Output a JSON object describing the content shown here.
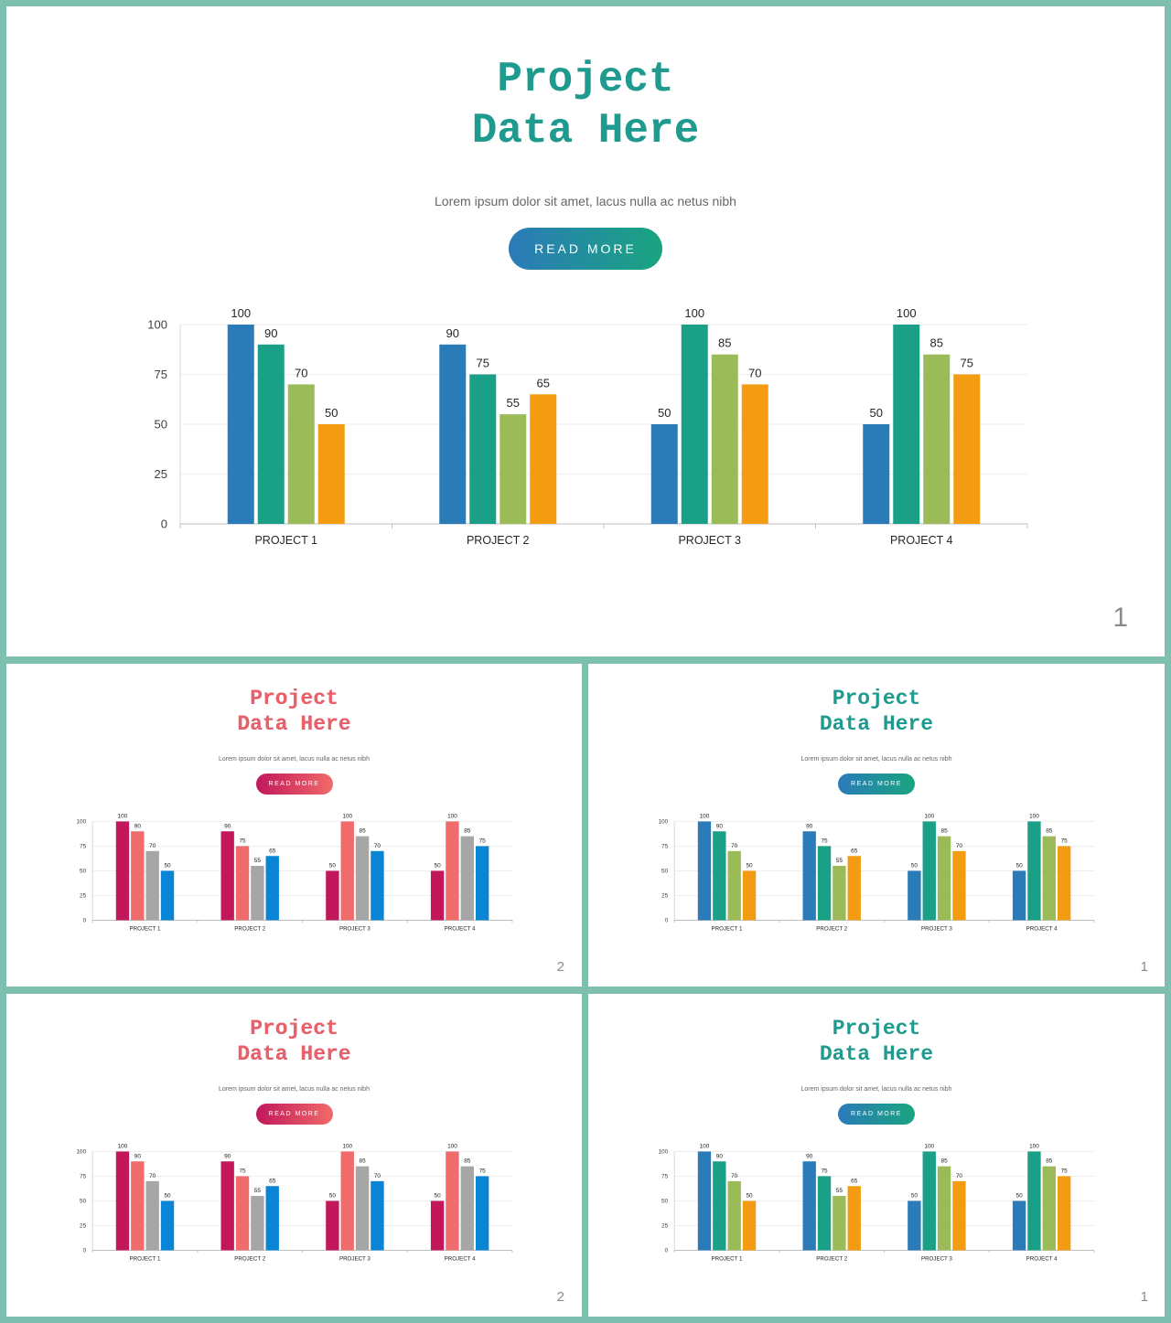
{
  "slides": [
    {
      "id": "slide-large",
      "title": "Project\nData Here",
      "subtitle": "Lorem ipsum dolor sit amet, lacus nulla ac netus nibh",
      "button_label": "READ MORE",
      "page_number": "1",
      "theme": "teal",
      "chart_index": 0
    },
    {
      "id": "slide-small-1",
      "title": "Project\nData Here",
      "subtitle": "Lorem ipsum dolor sit amet, lacus nulla ac netus nibh",
      "button_label": "READ MORE",
      "page_number": "2",
      "theme": "pink",
      "chart_index": 1
    },
    {
      "id": "slide-small-2",
      "title": "Project\nData Here",
      "subtitle": "Lorem ipsum dolor sit amet, lacus nulla ac netus nibh",
      "button_label": "READ MORE",
      "page_number": "1",
      "theme": "teal",
      "chart_index": 2
    },
    {
      "id": "slide-small-3",
      "title": "Project\nData Here",
      "subtitle": "Lorem ipsum dolor sit amet, lacus nulla ac netus nibh",
      "button_label": "READ MORE",
      "page_number": "2",
      "theme": "pink",
      "chart_index": 3
    },
    {
      "id": "slide-small-4",
      "title": "Project\nData Here",
      "subtitle": "Lorem ipsum dolor sit amet, lacus nulla ac netus nibh",
      "button_label": "READ MORE",
      "page_number": "1",
      "theme": "teal",
      "chart_index": 4
    }
  ],
  "themes": {
    "teal": {
      "title_color": "#1f9a8e",
      "button_gradient": [
        "#2b7bba",
        "#19a47e"
      ],
      "series_colors": [
        "#2b7bb9",
        "#19a087",
        "#9bbb59",
        "#f39c12"
      ]
    },
    "pink": {
      "title_color": "#e8606a",
      "title_color_2": "#c0245e",
      "button_gradient": [
        "#c2185b",
        "#f06a6a"
      ],
      "series_colors": [
        "#c2185b",
        "#f06b6b",
        "#a6a6a6",
        "#0a84d4"
      ]
    }
  },
  "chart_data": [
    {
      "type": "bar",
      "categories": [
        "PROJECT 1",
        "PROJECT 2",
        "PROJECT 3",
        "PROJECT 4"
      ],
      "series": [
        {
          "values": [
            100,
            90,
            50,
            50
          ]
        },
        {
          "values": [
            90,
            75,
            100,
            100
          ]
        },
        {
          "values": [
            70,
            55,
            85,
            85
          ]
        },
        {
          "values": [
            50,
            65,
            70,
            75
          ]
        }
      ],
      "yticks": [
        0,
        25,
        50,
        75,
        100
      ],
      "ylim": [
        0,
        100
      ],
      "grid": true,
      "data_labels": true
    },
    {
      "type": "bar",
      "categories": [
        "PROJECT 1",
        "PROJECT 2",
        "PROJECT 3",
        "PROJECT 4"
      ],
      "series": [
        {
          "values": [
            100,
            90,
            50,
            50
          ]
        },
        {
          "values": [
            90,
            75,
            100,
            100
          ]
        },
        {
          "values": [
            70,
            55,
            85,
            85
          ]
        },
        {
          "values": [
            50,
            65,
            70,
            75
          ]
        }
      ],
      "yticks": [
        0,
        25,
        50,
        75,
        100
      ],
      "ylim": [
        0,
        100
      ],
      "grid": true,
      "data_labels": true
    },
    {
      "type": "bar",
      "categories": [
        "PROJECT 1",
        "PROJECT 2",
        "PROJECT 3",
        "PROJECT 4"
      ],
      "series": [
        {
          "values": [
            100,
            90,
            50,
            50
          ]
        },
        {
          "values": [
            90,
            75,
            100,
            100
          ]
        },
        {
          "values": [
            70,
            55,
            85,
            85
          ]
        },
        {
          "values": [
            50,
            65,
            70,
            75
          ]
        }
      ],
      "yticks": [
        0,
        25,
        50,
        75,
        100
      ],
      "ylim": [
        0,
        100
      ],
      "grid": true,
      "data_labels": true
    },
    {
      "type": "bar",
      "categories": [
        "PROJECT 1",
        "PROJECT 2",
        "PROJECT 3",
        "PROJECT 4"
      ],
      "series": [
        {
          "values": [
            100,
            90,
            50,
            50
          ]
        },
        {
          "values": [
            90,
            75,
            100,
            100
          ]
        },
        {
          "values": [
            70,
            55,
            85,
            85
          ]
        },
        {
          "values": [
            50,
            65,
            70,
            75
          ]
        }
      ],
      "yticks": [
        0,
        25,
        50,
        75,
        100
      ],
      "ylim": [
        0,
        100
      ],
      "grid": true,
      "data_labels": true
    },
    {
      "type": "bar",
      "categories": [
        "PROJECT 1",
        "PROJECT 2",
        "PROJECT 3",
        "PROJECT 4"
      ],
      "series": [
        {
          "values": [
            100,
            90,
            50,
            50
          ]
        },
        {
          "values": [
            90,
            75,
            100,
            100
          ]
        },
        {
          "values": [
            70,
            55,
            85,
            85
          ]
        },
        {
          "values": [
            50,
            65,
            70,
            75
          ]
        }
      ],
      "yticks": [
        0,
        25,
        50,
        75,
        100
      ],
      "ylim": [
        0,
        100
      ],
      "grid": true,
      "data_labels": true
    }
  ]
}
